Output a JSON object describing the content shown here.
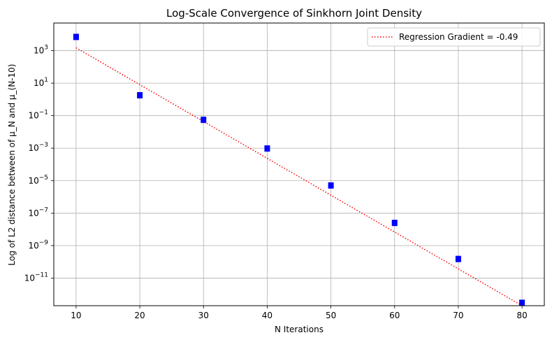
{
  "chart_data": {
    "type": "scatter",
    "title": "Log-Scale Convergence of Sinkhorn Joint Density",
    "xlabel": "N Iterations",
    "ylabel": "Log of L2 distance between of μ_N and μ_(N-10)",
    "xlim": [
      6.5,
      83.5
    ],
    "ylim_log10": [
      -12.7,
      4.7
    ],
    "yscale": "log",
    "grid": true,
    "x_ticks": [
      10,
      20,
      30,
      40,
      50,
      60,
      70,
      80
    ],
    "y_tick_exponents": [
      -11,
      -9,
      -7,
      -5,
      -3,
      -1,
      1,
      3
    ],
    "legend_position": "top-right",
    "series": [
      {
        "kind": "points",
        "color": "#0000ff",
        "marker": "square",
        "x": [
          10,
          20,
          30,
          40,
          50,
          60,
          70,
          80
        ],
        "y": [
          7000,
          1.8,
          0.055,
          0.00095,
          5e-06,
          2.5e-08,
          1.5e-10,
          3e-13
        ]
      },
      {
        "kind": "line",
        "name": "Regression Gradient = -0.49",
        "color": "#ff0000",
        "style": "dotted",
        "x": [
          10,
          80
        ],
        "y": [
          1500,
          2e-13
        ]
      }
    ]
  }
}
